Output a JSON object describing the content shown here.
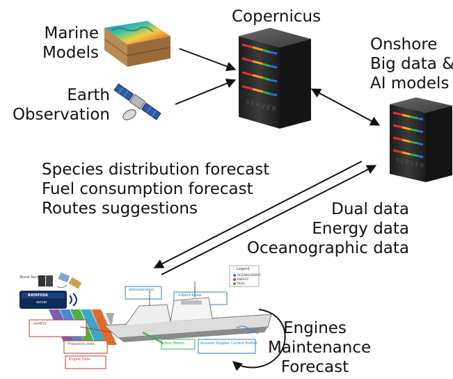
{
  "inputs": {
    "marine": [
      "Marine",
      "Models"
    ],
    "earth": [
      "Earth",
      "Observation"
    ]
  },
  "copernicus": "Copernicus",
  "onshore": [
    "Onshore",
    "Big data &",
    "AI models"
  ],
  "forecasts": [
    "Species distribution forecast",
    "Fuel consumption forecast",
    "Routes suggestions"
  ],
  "uplink": [
    "Dual data",
    "Energy data",
    "Oceanographic data"
  ],
  "engines": [
    "Engines",
    "Maintenance",
    "Forecast"
  ],
  "server_face_label": "SERVER",
  "ship_panel": {
    "shore_server": "Shore Server",
    "ratatosk": "RATATOSK",
    "server": "server",
    "boxes": {
      "administration": "Administration",
      "xband": "X-Band Radar",
      "airmos": "AirMOS",
      "propulsion": "Propulsion data",
      "engine": "Engine Data",
      "ship_motion": "Ship Motion",
      "adcp": "Acoustic Doppler Current Profiler"
    },
    "legend": [
      "Legend",
      "OCEANOGRAPHY",
      "ENERGY",
      "DUAL"
    ]
  },
  "colors": {
    "stripe_red": "#e53030",
    "stripe_orange": "#f2a31b",
    "stripe_green": "#2fb34a",
    "stripe_blue": "#2a6fe0",
    "server_body": "#2a2a2a"
  }
}
